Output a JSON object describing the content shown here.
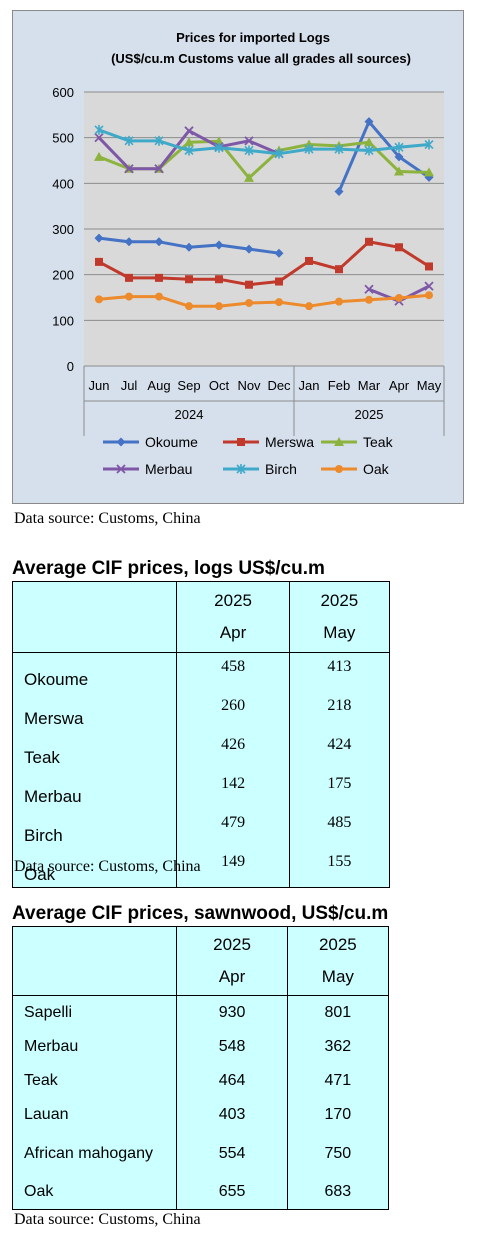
{
  "chart_data": {
    "type": "line",
    "title": "Prices for imported Logs",
    "subtitle": "(US$/cu.m Customs value all grades all sources)",
    "categories": [
      "Jun",
      "Jul",
      "Aug",
      "Sep",
      "Oct",
      "Nov",
      "Dec",
      "Jan",
      "Feb",
      "Mar",
      "Apr",
      "May"
    ],
    "year_groups": [
      {
        "label": "2024",
        "start": 0,
        "end": 6
      },
      {
        "label": "2025",
        "start": 7,
        "end": 11
      }
    ],
    "ylim": [
      0,
      600
    ],
    "yticks": [
      "0",
      "100",
      "200",
      "300",
      "400",
      "500",
      "600"
    ],
    "grid": true,
    "legend_position": "bottom",
    "series": [
      {
        "name": "Okoume",
        "color": "#4472c4",
        "marker": "diamond",
        "values": [
          280,
          272,
          272,
          260,
          265,
          256,
          247,
          null,
          382,
          535,
          458,
          413
        ]
      },
      {
        "name": "Merswa",
        "color": "#c0392b",
        "marker": "square",
        "values": [
          228,
          193,
          193,
          190,
          190,
          178,
          185,
          230,
          212,
          272,
          260,
          218
        ]
      },
      {
        "name": "Teak",
        "color": "#8db33f",
        "marker": "triangle",
        "values": [
          458,
          432,
          432,
          490,
          492,
          412,
          472,
          485,
          482,
          490,
          426,
          424
        ]
      },
      {
        "name": "Merbau",
        "color": "#7e57a7",
        "marker": "x",
        "values": [
          500,
          432,
          432,
          515,
          480,
          493,
          465,
          null,
          null,
          168,
          142,
          175
        ]
      },
      {
        "name": "Birch",
        "color": "#3fa9c9",
        "marker": "star",
        "values": [
          517,
          493,
          493,
          472,
          478,
          472,
          465,
          475,
          475,
          472,
          479,
          485
        ]
      },
      {
        "name": "Oak",
        "color": "#ed8a2b",
        "marker": "circle",
        "values": [
          146,
          152,
          152,
          131,
          131,
          138,
          140,
          131,
          141,
          145,
          149,
          155
        ]
      }
    ]
  },
  "source_text": "Data source: Customs, China",
  "logs_table": {
    "title": "Average CIF prices, logs US$/cu.m",
    "columns": [
      {
        "year": "2025",
        "month": "Apr"
      },
      {
        "year": "2025",
        "month": "May"
      }
    ],
    "rows": [
      {
        "name": "Okoume",
        "apr": "458",
        "may": "413"
      },
      {
        "name": "Merswa",
        "apr": "260",
        "may": "218"
      },
      {
        "name": "Teak",
        "apr": "426",
        "may": "424"
      },
      {
        "name": "Merbau",
        "apr": "142",
        "may": "175"
      },
      {
        "name": "Birch",
        "apr": "479",
        "may": "485"
      },
      {
        "name": "Oak",
        "apr": "149",
        "may": "155"
      }
    ]
  },
  "sawnwood_table": {
    "title": "Average CIF prices, sawnwood, US$/cu.m",
    "columns": [
      {
        "year": "2025",
        "month": "Apr"
      },
      {
        "year": "2025",
        "month": "May"
      }
    ],
    "rows": [
      {
        "name": "Sapelli",
        "apr": "930",
        "may": "801"
      },
      {
        "name": "Merbau",
        "apr": "548",
        "may": "362"
      },
      {
        "name": "Teak",
        "apr": "464",
        "may": "471"
      },
      {
        "name": "Lauan",
        "apr": "403",
        "may": "170"
      },
      {
        "name": "African mahogany",
        "apr": "554",
        "may": "750"
      },
      {
        "name": "Oak",
        "apr": "655",
        "may": "683"
      }
    ]
  }
}
